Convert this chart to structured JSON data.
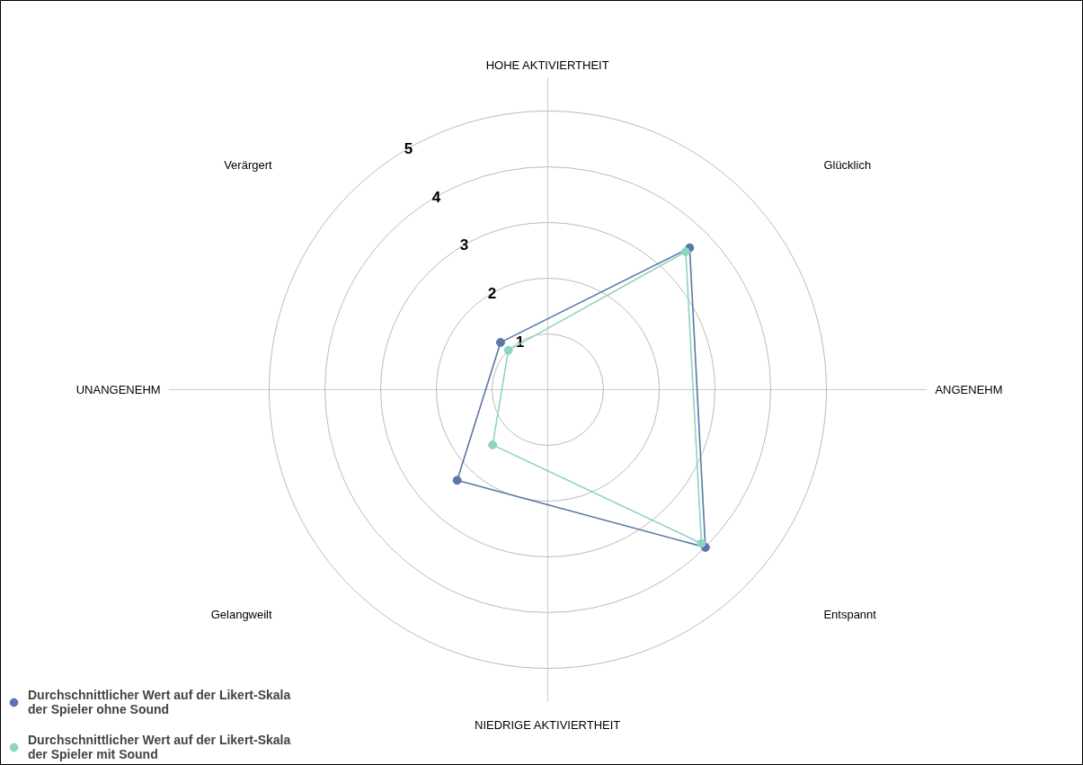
{
  "chart_data": {
    "type": "radar",
    "categories": [
      "Glücklich",
      "Entspannt",
      "Gelangweilt",
      "Verärgert"
    ],
    "series": [
      {
        "name": "Durchschnittlicher Wert auf der Likert-Skala der Spieler ohne Sound",
        "color": "#5b76a8",
        "values": [
          3.6,
          4.0,
          2.3,
          1.2
        ]
      },
      {
        "name": "Durchschnittlicher Wert auf der Likert-Skala der Spieler mit Sound",
        "color": "#8fd3c0",
        "values": [
          3.5,
          3.9,
          1.4,
          1.0
        ]
      }
    ],
    "ylim": [
      0,
      5
    ],
    "yticks": [
      1,
      2,
      3,
      4,
      5
    ],
    "annotations": [
      "HOHE AKTIVIERTHEIT",
      "ANGENEHM",
      "NIEDRIGE AKTIVIERTHEIT",
      "UNANGENEHM"
    ],
    "marker": "circle",
    "legend": "bottom left",
    "grid": true
  }
}
